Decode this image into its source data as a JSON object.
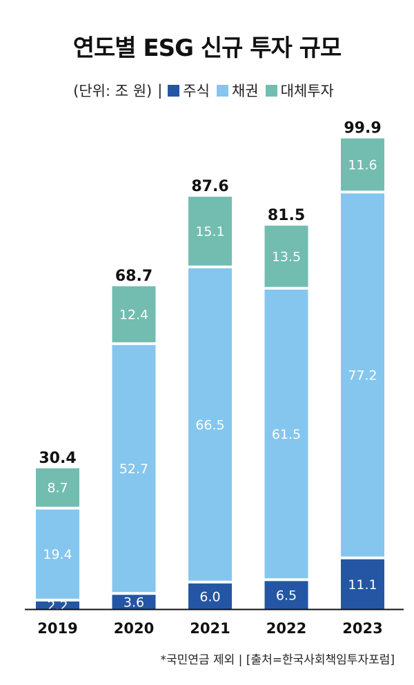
{
  "title": "연도별 ESG 신규 투자 규모",
  "legend": {
    "unit": "(단위: 조 원)",
    "separator": "|",
    "items": [
      {
        "label": "주식",
        "color": "#2456a4"
      },
      {
        "label": "채권",
        "color": "#85c6ee"
      },
      {
        "label": "대체투자",
        "color": "#72bdb0"
      }
    ]
  },
  "source": "*국민연금 제외 | [출처=한국사회책임투자포럼]",
  "chart_data": {
    "type": "bar",
    "stacked": true,
    "title": "연도별 ESG 신규 투자 규모",
    "categories": [
      "2019",
      "2020",
      "2021",
      "2022",
      "2023"
    ],
    "series": [
      {
        "name": "주식",
        "color": "#2456a4",
        "values": [
          2.2,
          3.6,
          6.0,
          6.5,
          11.1
        ],
        "labels": [
          "2.2",
          "3.6",
          "6.0",
          "6.5",
          "11.1"
        ]
      },
      {
        "name": "채권",
        "color": "#85c6ee",
        "values": [
          19.4,
          52.7,
          66.5,
          61.5,
          77.2
        ],
        "labels": [
          "19.4",
          "52.7",
          "66.5",
          "61.5",
          "77.2"
        ]
      },
      {
        "name": "대체투자",
        "color": "#72bdb0",
        "values": [
          8.7,
          12.4,
          15.1,
          13.5,
          11.6
        ],
        "labels": [
          "8.7",
          "12.4",
          "15.1",
          "13.5",
          "11.6"
        ]
      }
    ],
    "totals": [
      "30.4",
      "68.7",
      "87.6",
      "81.5",
      "99.9"
    ],
    "ylim": [
      0,
      100
    ],
    "grid": false,
    "legend_position": "top"
  }
}
